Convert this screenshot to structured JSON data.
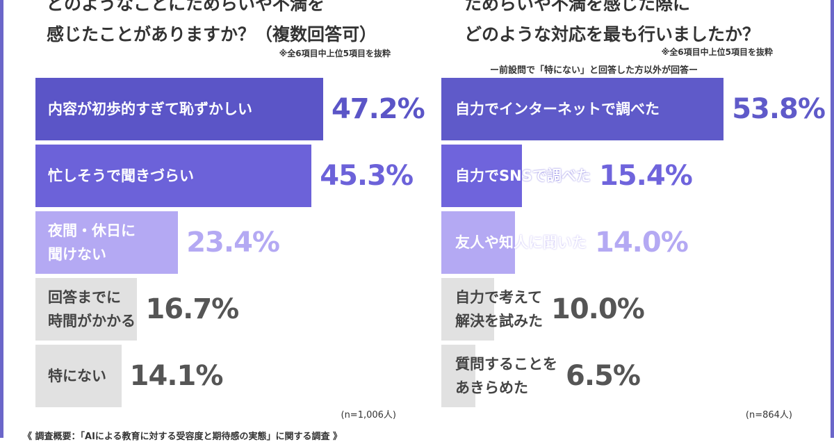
{
  "chart_data": [
    {
      "type": "bar",
      "orientation": "horizontal",
      "title": "どのようなことにためらいや不満を\n感じたことがありますか？（複数回答可）",
      "note": "※全6項目中上位5項目を抜粋",
      "categories": [
        "内容が初歩的すぎて恥ずかしい",
        "忙しそうで聞きづらい",
        "夜間・休日に\n聞けない",
        "回答までに\n時間がかかる",
        "特にない"
      ],
      "values": [
        47.2,
        45.3,
        23.4,
        16.7,
        14.1
      ],
      "value_labels": [
        "47.2%",
        "45.3%",
        "23.4%",
        "16.7%",
        "14.1%"
      ],
      "colors": [
        "#5b55c7",
        "#6c62d9",
        "#b4a9f3",
        "#e1e1e1",
        "#e1e1e1"
      ],
      "value_label_colors": [
        "#5b55c7",
        "#6c62d9",
        "#b4a9f3",
        "#555555",
        "#555555"
      ],
      "sample_size": "(n=1,006人)"
    },
    {
      "type": "bar",
      "orientation": "horizontal",
      "title": "ためらいや不満を感じた際に\nどのような対応を最も行いましたか？",
      "note": "※全6項目中上位5項目を抜粋",
      "subtitle": "ー前設問で「特にない」と回答した方以外が回答ー",
      "categories": [
        "自力でインターネットで調べた",
        "自力でSNSで調べた",
        "友人や知人に聞いた",
        "自力で考えて\n解決を試みた",
        "質問することを\nあきらめた"
      ],
      "values": [
        53.8,
        15.4,
        14.0,
        10.0,
        6.5
      ],
      "value_labels": [
        "53.8%",
        "15.4%",
        "14.0%",
        "10.0%",
        "6.5%"
      ],
      "colors": [
        "#5f5ac9",
        "#6f64dc",
        "#b4a9f3",
        "#e1e1e1",
        "#e1e1e1"
      ],
      "value_label_colors": [
        "#5f5ac9",
        "#6f64dc",
        "#b4a9f3",
        "#555555",
        "#555555"
      ],
      "sample_size": "(n=864人)"
    }
  ],
  "footer": "《 調査概要：「AIによる教育に対する受容度と期待感の実態」に関する調査 》"
}
